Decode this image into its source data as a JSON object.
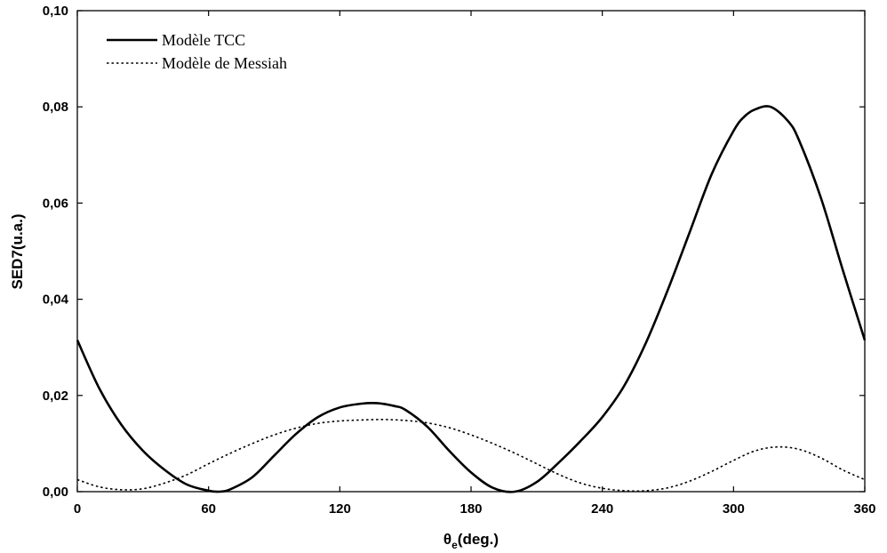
{
  "chart_data": {
    "type": "line",
    "title": "",
    "xlabel": "θe(deg.)",
    "ylabel": "SED7(u.a.)",
    "xlim": [
      0,
      360
    ],
    "ylim": [
      0,
      0.1
    ],
    "x_ticks": [
      0,
      60,
      120,
      180,
      240,
      300,
      360
    ],
    "x_tick_labels": [
      "0",
      "60",
      "120",
      "180",
      "240",
      "300",
      "360"
    ],
    "y_ticks": [
      0,
      0.02,
      0.04,
      0.06,
      0.08,
      0.1
    ],
    "y_tick_labels": [
      "0,00",
      "0,02",
      "0,04",
      "0,06",
      "0,08",
      "0,10"
    ],
    "grid": false,
    "legend_position": "top-left",
    "series": [
      {
        "name": "Modèle TCC",
        "style": "solid",
        "color": "#000000",
        "x": [
          0,
          10,
          20,
          30,
          40,
          50,
          60,
          65,
          70,
          80,
          90,
          100,
          110,
          120,
          130,
          137,
          145,
          150,
          160,
          170,
          180,
          190,
          200,
          210,
          220,
          230,
          240,
          250,
          260,
          270,
          280,
          290,
          300,
          305,
          310,
          317,
          325,
          330,
          340,
          350,
          360
        ],
        "y": [
          0.0315,
          0.0215,
          0.014,
          0.0085,
          0.0045,
          0.0015,
          0.0002,
          0.0,
          0.0005,
          0.003,
          0.0075,
          0.012,
          0.0155,
          0.0175,
          0.0183,
          0.0184,
          0.0178,
          0.017,
          0.0135,
          0.0085,
          0.004,
          0.0008,
          0.0,
          0.002,
          0.006,
          0.0105,
          0.0155,
          0.022,
          0.031,
          0.042,
          0.054,
          0.066,
          0.075,
          0.078,
          0.0795,
          0.08,
          0.077,
          0.073,
          0.061,
          0.046,
          0.0315
        ]
      },
      {
        "name": "Modèle de Messiah",
        "style": "dotted",
        "color": "#000000",
        "x": [
          0,
          10,
          20,
          30,
          40,
          50,
          60,
          70,
          80,
          90,
          100,
          110,
          120,
          130,
          140,
          150,
          160,
          170,
          180,
          190,
          200,
          210,
          220,
          230,
          240,
          250,
          260,
          270,
          280,
          290,
          300,
          310,
          320,
          330,
          340,
          350,
          360
        ],
        "y": [
          0.0025,
          0.001,
          0.0004,
          0.0006,
          0.0018,
          0.0035,
          0.0058,
          0.008,
          0.01,
          0.0118,
          0.0132,
          0.0142,
          0.0147,
          0.0149,
          0.015,
          0.0148,
          0.0143,
          0.0133,
          0.0118,
          0.01,
          0.008,
          0.0058,
          0.0036,
          0.0018,
          0.0007,
          0.0002,
          0.0002,
          0.0008,
          0.0022,
          0.0042,
          0.0065,
          0.0085,
          0.0093,
          0.0088,
          0.007,
          0.0045,
          0.0025
        ]
      }
    ]
  }
}
